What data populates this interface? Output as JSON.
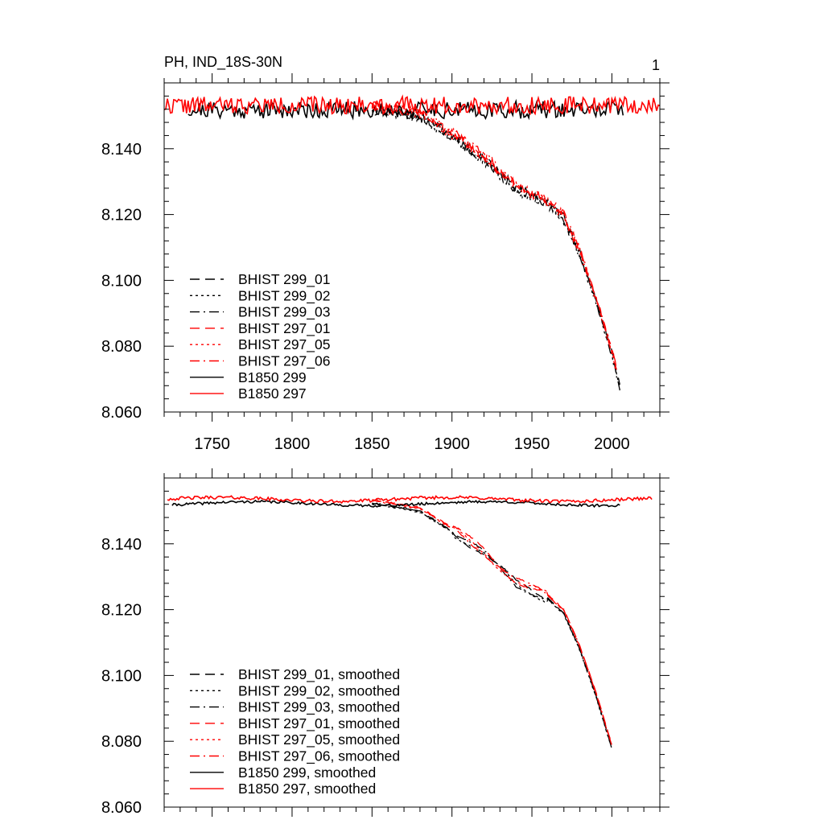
{
  "colors": {
    "black": "#000000",
    "red": "#ff0000",
    "frame": "#000000",
    "background": "#ffffff"
  },
  "title_left": "PH, IND_18S-30N",
  "title_right": "1",
  "chart_data": [
    {
      "type": "line",
      "panel": "top",
      "title": "PH, IND_18S-30N",
      "xlim": [
        1720,
        2030
      ],
      "ylim": [
        8.06,
        8.16
      ],
      "xticks": [
        1750,
        1800,
        1850,
        1900,
        1950,
        2000
      ],
      "xtick_labels": [
        "1750",
        "1800",
        "1850",
        "1900",
        "1950",
        "2000"
      ],
      "yticks": [
        8.06,
        8.08,
        8.1,
        8.12,
        8.14
      ],
      "ytick_labels": [
        "8.060",
        "8.080",
        "8.100",
        "8.120",
        "8.140"
      ],
      "legend_position": "lower-left",
      "series": [
        {
          "name": "BHIST 299_01",
          "color": "#000000",
          "dash": "dashed",
          "kind": "hist",
          "x_start": 1850,
          "x_end": 2005,
          "noise": 0.0032,
          "offset": 0.0,
          "seed": 11
        },
        {
          "name": "BHIST 299_02",
          "color": "#000000",
          "dash": "dotted",
          "kind": "hist",
          "x_start": 1850,
          "x_end": 2005,
          "noise": 0.0032,
          "offset": -0.0006,
          "seed": 12
        },
        {
          "name": "BHIST 299_03",
          "color": "#000000",
          "dash": "dashdot",
          "kind": "hist",
          "x_start": 1850,
          "x_end": 2005,
          "noise": 0.0032,
          "offset": -0.0003,
          "seed": 13
        },
        {
          "name": "BHIST 297_01",
          "color": "#ff0000",
          "dash": "dashed",
          "kind": "hist",
          "x_start": 1850,
          "x_end": 2003,
          "noise": 0.0032,
          "offset": 0.0008,
          "seed": 14
        },
        {
          "name": "BHIST 297_05",
          "color": "#ff0000",
          "dash": "dotted",
          "kind": "hist",
          "x_start": 1850,
          "x_end": 2003,
          "noise": 0.0032,
          "offset": 0.0005,
          "seed": 15
        },
        {
          "name": "BHIST 297_06",
          "color": "#ff0000",
          "dash": "dashdot",
          "kind": "hist",
          "x_start": 1850,
          "x_end": 2003,
          "noise": 0.0032,
          "offset": 0.001,
          "seed": 16
        },
        {
          "name": "B1850 299",
          "color": "#000000",
          "dash": "solid",
          "kind": "ctrl",
          "x_start": 1735,
          "x_end": 2007,
          "level": 8.1518,
          "noise": 0.0026,
          "seed": 21
        },
        {
          "name": "B1850 297",
          "color": "#ff0000",
          "dash": "solid",
          "kind": "ctrl",
          "x_start": 1720,
          "x_end": 2030,
          "level": 8.1532,
          "noise": 0.0026,
          "seed": 22
        }
      ]
    },
    {
      "type": "line",
      "panel": "bottom",
      "title": "",
      "xlim": [
        1720,
        2030
      ],
      "ylim": [
        8.06,
        8.16
      ],
      "xticks": [
        1750,
        1800,
        1850,
        1900,
        1950,
        2000
      ],
      "xtick_labels": [],
      "yticks": [
        8.06,
        8.08,
        8.1,
        8.12,
        8.14
      ],
      "ytick_labels": [
        "8.060",
        "8.080",
        "8.100",
        "8.120",
        "8.140"
      ],
      "legend_position": "lower-left",
      "series": [
        {
          "name": "BHIST 299_01, smoothed",
          "color": "#000000",
          "dash": "dashed",
          "kind": "hist",
          "x_start": 1850,
          "x_end": 2000,
          "noise": 0.0004,
          "offset": 0.0,
          "seed": 31
        },
        {
          "name": "BHIST 299_02, smoothed",
          "color": "#000000",
          "dash": "dotted",
          "kind": "hist",
          "x_start": 1850,
          "x_end": 2000,
          "noise": 0.0004,
          "offset": -0.0004,
          "seed": 32
        },
        {
          "name": "BHIST 299_03, smoothed",
          "color": "#000000",
          "dash": "dashdot",
          "kind": "hist",
          "x_start": 1850,
          "x_end": 2000,
          "noise": 0.0004,
          "offset": -0.0002,
          "seed": 33
        },
        {
          "name": "BHIST 297_01, smoothed",
          "color": "#ff0000",
          "dash": "dashed",
          "kind": "hist",
          "x_start": 1850,
          "x_end": 2000,
          "noise": 0.0004,
          "offset": 0.001,
          "seed": 34
        },
        {
          "name": "BHIST 297_05, smoothed",
          "color": "#ff0000",
          "dash": "dotted",
          "kind": "hist",
          "x_start": 1850,
          "x_end": 2000,
          "noise": 0.0004,
          "offset": 0.0006,
          "seed": 35
        },
        {
          "name": "BHIST 297_06, smoothed",
          "color": "#ff0000",
          "dash": "dashdot",
          "kind": "hist",
          "x_start": 1850,
          "x_end": 2000,
          "noise": 0.0004,
          "offset": 0.0008,
          "seed": 36
        },
        {
          "name": "B1850 299, smoothed",
          "color": "#000000",
          "dash": "solid",
          "kind": "ctrl",
          "x_start": 1725,
          "x_end": 2005,
          "level": 8.1522,
          "noise": 0.0004,
          "seed": 41
        },
        {
          "name": "B1850 297, smoothed",
          "color": "#ff0000",
          "dash": "solid",
          "kind": "ctrl",
          "x_start": 1722,
          "x_end": 2025,
          "level": 8.1535,
          "noise": 0.0005,
          "seed": 42
        }
      ]
    }
  ]
}
